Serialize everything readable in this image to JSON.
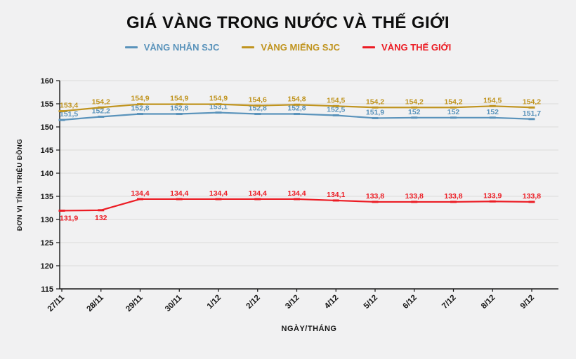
{
  "chart_data": {
    "type": "line",
    "title": "GIÁ VÀNG TRONG NƯỚC VÀ THẾ GIỚI",
    "xlabel": "NGÀY/THÁNG",
    "ylabel": "ĐƠN VỊ TÍNH TRIỆU ĐỒNG",
    "ylim": [
      115,
      160
    ],
    "yticks": [
      115,
      120,
      125,
      130,
      135,
      140,
      145,
      150,
      155,
      160
    ],
    "grid": true,
    "legend_position": "top",
    "categories": [
      "27/11",
      "28/11",
      "29/11",
      "30/11",
      "1/12",
      "2/12",
      "3/12",
      "4/12",
      "5/12",
      "6/12",
      "7/12",
      "8/12",
      "9/12"
    ],
    "series": [
      {
        "name": "VÀNG NHẪN SJC",
        "color": "#5a93bb",
        "label_side": "above",
        "values": [
          151.5,
          152.2,
          152.8,
          152.8,
          153.1,
          152.8,
          152.8,
          152.5,
          151.9,
          152,
          152,
          152,
          151.7
        ],
        "labels": [
          "151,5",
          "152,2",
          "152,8",
          "152,8",
          "153,1",
          "152,8",
          "152,8",
          "152,5",
          "151,9",
          "152",
          "152",
          "152",
          "151,7"
        ]
      },
      {
        "name": "VÀNG MIẾNG SJC",
        "color": "#c0941f",
        "label_side": "above",
        "values": [
          153.4,
          154.2,
          154.9,
          154.9,
          154.9,
          154.6,
          154.8,
          154.5,
          154.2,
          154.2,
          154.2,
          154.5,
          154.2
        ],
        "labels": [
          "153,4",
          "154,2",
          "154,9",
          "154,9",
          "154,9",
          "154,6",
          "154,8",
          "154,5",
          "154,2",
          "154,2",
          "154,2",
          "154,5",
          "154,2"
        ]
      },
      {
        "name": "VÀNG THẾ GIỚI",
        "color": "#ec1c24",
        "label_side": "above",
        "label_sides": [
          "below",
          "below",
          "above",
          "above",
          "above",
          "above",
          "above",
          "above",
          "above",
          "above",
          "above",
          "above",
          "above"
        ],
        "values": [
          131.9,
          132,
          134.4,
          134.4,
          134.4,
          134.4,
          134.4,
          134.1,
          133.8,
          133.8,
          133.8,
          133.9,
          133.8
        ],
        "labels": [
          "131,9",
          "132",
          "134,4",
          "134,4",
          "134,4",
          "134,4",
          "134,4",
          "134,1",
          "133,8",
          "133,8",
          "133,8",
          "133,9",
          "133,8"
        ]
      }
    ]
  }
}
